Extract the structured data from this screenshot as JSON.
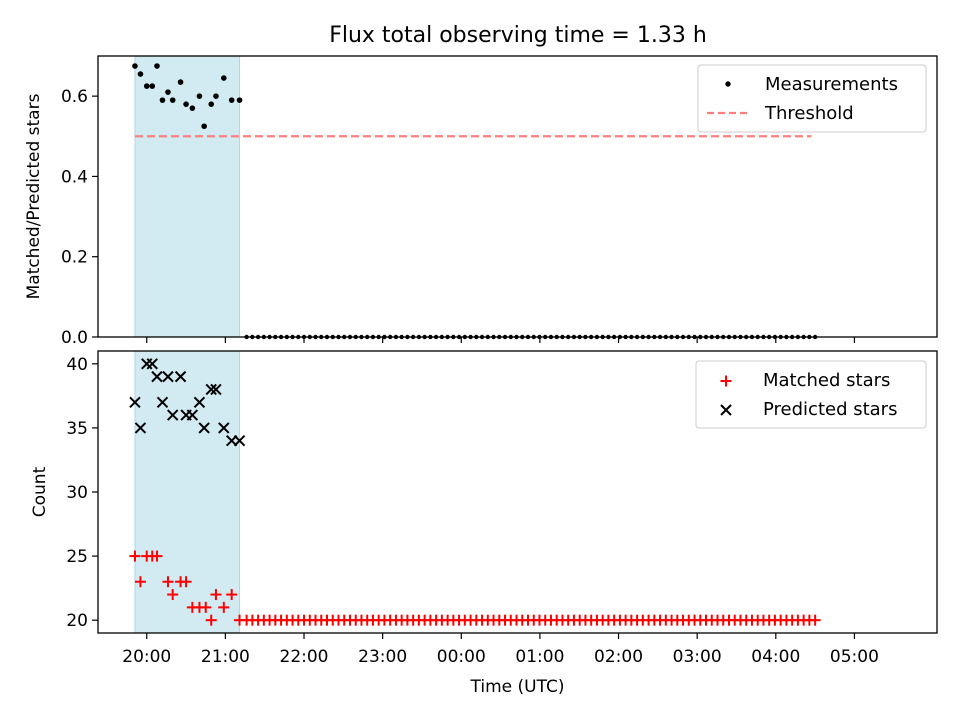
{
  "figure": {
    "title": "Flux total observing time = 1.33 h"
  },
  "colors": {
    "measurement": "#000000",
    "threshold": "#ff7f7f",
    "shade": "#add8e6",
    "matched": "#ff0000",
    "predicted": "#000000"
  },
  "chart_data": [
    {
      "type": "scatter",
      "title": "Flux total observing time = 1.33 h",
      "xlabel": "",
      "ylabel": "Matched/Predicted stars",
      "ylim": [
        0,
        0.7
      ],
      "yticks": [
        "0.0",
        "0.2",
        "0.4",
        "0.6"
      ],
      "ytick_values": [
        0,
        0.2,
        0.4,
        0.6
      ],
      "xlim_hours": [
        -0.62,
        10.05
      ],
      "xticks": [
        "20:00",
        "21:00",
        "22:00",
        "23:00",
        "00:00",
        "01:00",
        "02:00",
        "03:00",
        "04:00",
        "05:00"
      ],
      "legend_position": "upper right",
      "grid": false,
      "shaded_span_hours": [
        -0.15,
        1.18
      ],
      "threshold": {
        "name": "Threshold",
        "value": 0.5,
        "x_hours": [
          -0.15,
          8.45
        ]
      },
      "series": [
        {
          "name": "Measurements",
          "marker": "dot",
          "x_hours": [
            -0.15,
            -0.08,
            0.0,
            0.07,
            0.13,
            0.2,
            0.27,
            0.33,
            0.43,
            0.5,
            0.58,
            0.67,
            0.73,
            0.82,
            0.88,
            0.98,
            1.08,
            1.18
          ],
          "values": [
            0.675,
            0.655,
            0.625,
            0.625,
            0.675,
            0.59,
            0.61,
            0.59,
            0.635,
            0.58,
            0.57,
            0.6,
            0.525,
            0.58,
            0.6,
            0.645,
            0.59,
            0.59
          ]
        }
      ],
      "zero_run": {
        "value": 0,
        "start_hours": 1.27,
        "end_hours": 8.5,
        "count": 100
      }
    },
    {
      "type": "scatter",
      "xlabel": "Time (UTC)",
      "ylabel": "Count",
      "ylim": [
        19,
        41
      ],
      "yticks": [
        "20",
        "25",
        "30",
        "35",
        "40"
      ],
      "ytick_values": [
        20,
        25,
        30,
        35,
        40
      ],
      "xlim_hours": [
        -0.62,
        10.05
      ],
      "xticks": [
        "20:00",
        "21:00",
        "22:00",
        "23:00",
        "00:00",
        "01:00",
        "02:00",
        "03:00",
        "04:00",
        "05:00"
      ],
      "legend_position": "upper right",
      "grid": false,
      "shaded_span_hours": [
        -0.15,
        1.18
      ],
      "series": [
        {
          "name": "Matched stars",
          "marker": "plus",
          "x_hours": [
            -0.15,
            -0.08,
            0.0,
            0.07,
            0.13,
            0.27,
            0.33,
            0.43,
            0.5,
            0.58,
            0.67,
            0.75,
            0.82,
            0.88,
            0.98,
            1.08,
            1.18
          ],
          "values": [
            25,
            23,
            25,
            25,
            25,
            23,
            22,
            23,
            23,
            21,
            21,
            21,
            20,
            22,
            21,
            22,
            20
          ]
        },
        {
          "name": "Predicted stars",
          "marker": "x",
          "x_hours": [
            -0.15,
            -0.08,
            0.0,
            0.07,
            0.13,
            0.2,
            0.27,
            0.33,
            0.43,
            0.5,
            0.58,
            0.67,
            0.73,
            0.82,
            0.88,
            0.98,
            1.08,
            1.18
          ],
          "values": [
            37,
            35,
            40,
            40,
            39,
            37,
            39,
            36,
            39,
            36,
            36,
            37,
            35,
            38,
            38,
            35,
            34,
            34
          ]
        }
      ],
      "matched_tail": {
        "value": 20,
        "start_hours": 1.27,
        "end_hours": 8.5,
        "count": 100
      }
    }
  ]
}
